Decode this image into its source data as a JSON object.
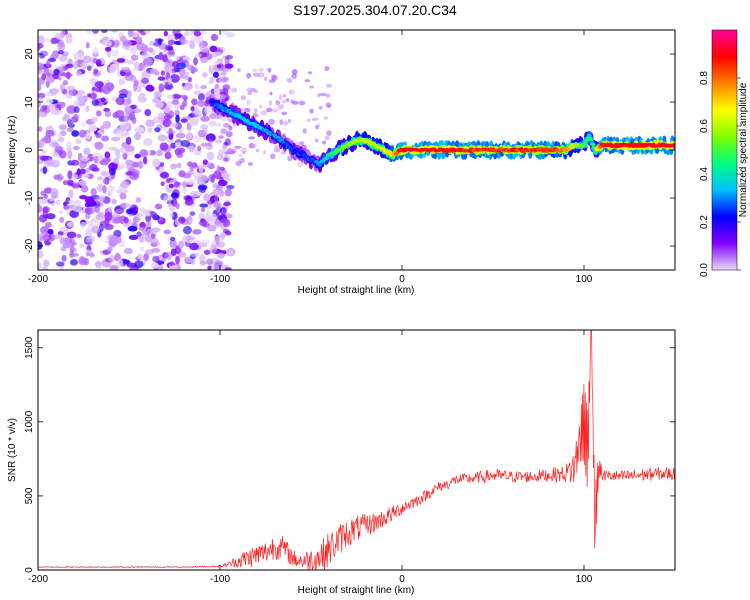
{
  "title": "S197.2025.304.07.20.C34",
  "chart_data": [
    {
      "type": "heatmap",
      "title": "S197.2025.304.07.20.C34",
      "xlabel": "Height of straight line (km)",
      "ylabel": "Frequency (Hz)",
      "xlim": [
        -200,
        150
      ],
      "ylim": [
        -25,
        25
      ],
      "xticks": [
        -200,
        -100,
        0,
        100
      ],
      "yticks": [
        -20,
        -10,
        0,
        10,
        20
      ],
      "colorbar": {
        "label": "Normalized spectral amplitude",
        "range": [
          0,
          1
        ],
        "ticks": [
          "0.0",
          "0.2",
          "0.4",
          "0.6",
          "0.8"
        ],
        "colors": [
          "#e8d8f8",
          "#8000ff",
          "#0000ff",
          "#00c0ff",
          "#00ff80",
          "#80ff00",
          "#ffff00",
          "#ff8000",
          "#ff0000",
          "#ff00a0"
        ]
      },
      "ridge": {
        "x": [
          -105,
          -100,
          -90,
          -80,
          -70,
          -60,
          -50,
          -45,
          -40,
          -35,
          -30,
          -25,
          -20,
          -15,
          -10,
          -5,
          0,
          10,
          20,
          30,
          40,
          50,
          60,
          70,
          80,
          90,
          95,
          100,
          103,
          106,
          110,
          120,
          130,
          140,
          150
        ],
        "y": [
          10,
          9,
          7,
          5,
          3,
          0,
          -2,
          -3,
          -1,
          0,
          1,
          2,
          2,
          1,
          0,
          -1,
          0,
          0,
          0,
          0,
          0,
          0,
          0,
          0,
          0,
          0,
          1,
          1,
          3,
          0,
          1,
          1,
          1,
          1,
          1
        ],
        "amplitude": [
          0.2,
          0.3,
          0.35,
          0.35,
          0.3,
          0.25,
          0.25,
          0.3,
          0.4,
          0.5,
          0.55,
          0.6,
          0.6,
          0.6,
          0.65,
          0.7,
          0.9,
          0.9,
          0.9,
          0.9,
          0.85,
          0.85,
          0.85,
          0.85,
          0.85,
          0.8,
          0.6,
          0.5,
          0.4,
          0.5,
          0.9,
          0.9,
          0.9,
          0.9,
          0.9
        ]
      },
      "noise_region": {
        "x_range": [
          -200,
          -100
        ],
        "amplitude": 0.1
      }
    },
    {
      "type": "line",
      "xlabel": "Height of straight line (km)",
      "ylabel": "SNR (10 * v/v)",
      "xlim": [
        -200,
        150
      ],
      "ylim": [
        0,
        1620
      ],
      "xticks": [
        -200,
        -100,
        0,
        100
      ],
      "yticks": [
        0,
        500,
        1000,
        1500
      ],
      "color": "#ff2020",
      "series": [
        {
          "name": "SNR",
          "x": [
            -200,
            -180,
            -160,
            -140,
            -120,
            -100,
            -95,
            -85,
            -75,
            -70,
            -65,
            -60,
            -55,
            -50,
            -45,
            -40,
            -35,
            -30,
            -25,
            -20,
            -15,
            -10,
            -5,
            0,
            5,
            10,
            15,
            20,
            25,
            30,
            40,
            50,
            60,
            70,
            80,
            90,
            95,
            98,
            100,
            102,
            104,
            106,
            108,
            110,
            120,
            130,
            140,
            150
          ],
          "y": [
            20,
            20,
            20,
            20,
            20,
            25,
            40,
            80,
            120,
            160,
            150,
            80,
            60,
            70,
            90,
            140,
            200,
            250,
            280,
            300,
            320,
            350,
            380,
            420,
            450,
            480,
            520,
            560,
            580,
            610,
            620,
            640,
            630,
            630,
            640,
            650,
            700,
            900,
            1000,
            800,
            1620,
            300,
            700,
            640,
            630,
            640,
            650,
            650
          ],
          "noise_amplitude": [
            3,
            3,
            3,
            3,
            3,
            6,
            20,
            70,
            80,
            90,
            80,
            60,
            60,
            80,
            110,
            120,
            110,
            100,
            90,
            80,
            70,
            60,
            55,
            50,
            45,
            40,
            38,
            36,
            36,
            36,
            40,
            45,
            40,
            40,
            45,
            60,
            150,
            200,
            300,
            300,
            0,
            250,
            120,
            40,
            40,
            45,
            45,
            45
          ]
        }
      ]
    }
  ]
}
